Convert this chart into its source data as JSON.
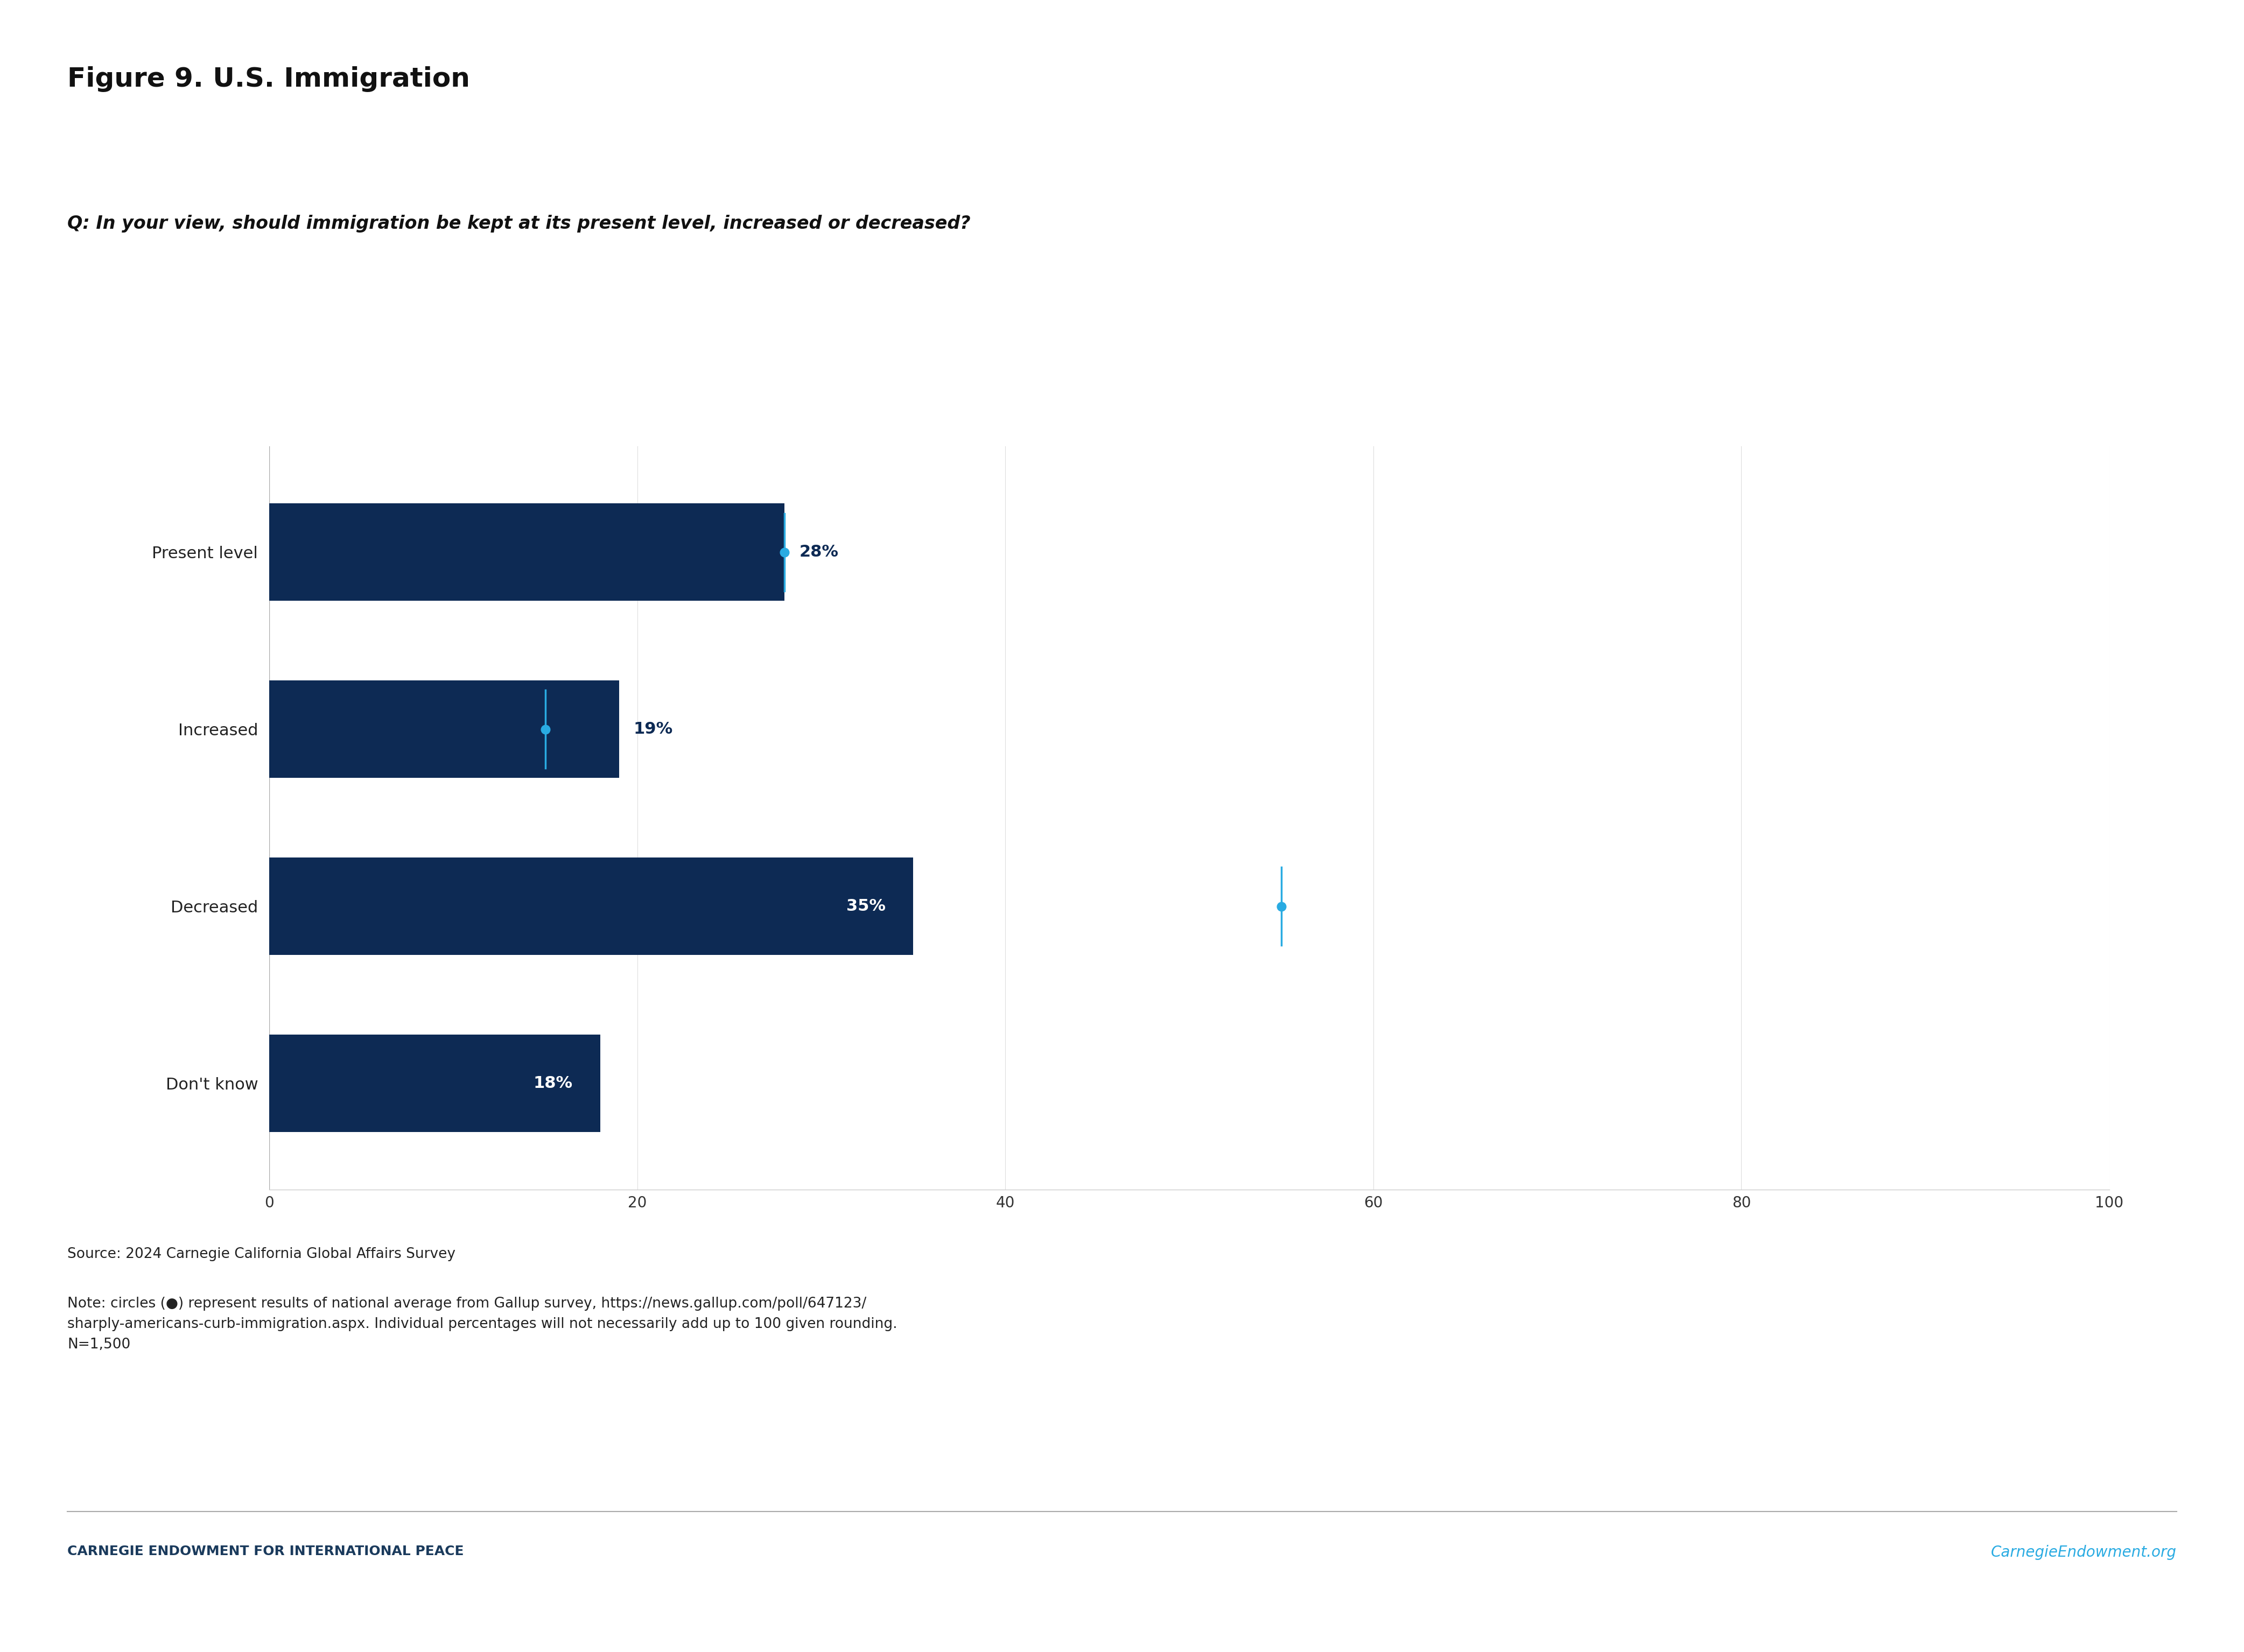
{
  "title": "Figure 9. U.S. Immigration",
  "question": "Q: In your view, should immigration be kept at its present level, increased or decreased?",
  "categories": [
    "Present level",
    "Increased",
    "Decreased",
    "Don't know"
  ],
  "values": [
    28,
    19,
    35,
    18
  ],
  "bar_color": "#0d2a54",
  "label_colors": [
    "#29abe2",
    "#29abe2",
    "#ffffff",
    "#ffffff"
  ],
  "dot_positions": [
    28,
    15,
    55,
    null
  ],
  "dot_error": [
    4,
    3,
    5,
    null
  ],
  "dot_color": "#29abe2",
  "xlim": [
    0,
    100
  ],
  "xticks": [
    0,
    20,
    40,
    60,
    80,
    100
  ],
  "background_color": "#ffffff",
  "source_text": "Source: 2024 Carnegie California Global Affairs Survey",
  "note_text": "Note: circles (●) represent results of national average from Gallup survey, https://news.gallup.com/poll/647123/\nsharply-americans-curb-immigration.aspx. Individual percentages will not necessarily add up to 100 given rounding.\nN=1,500",
  "footer_left": "CARNEGIE ENDOWMENT FOR INTERNATIONAL PEACE",
  "footer_right": "CarnegieEndowment.org",
  "footer_color_left": "#1a3a5c",
  "footer_color_right": "#29abe2",
  "title_fontsize": 36,
  "question_fontsize": 24,
  "bar_label_fontsize": 22,
  "axis_tick_fontsize": 20,
  "category_fontsize": 22,
  "source_fontsize": 19,
  "footer_fontsize": 18
}
